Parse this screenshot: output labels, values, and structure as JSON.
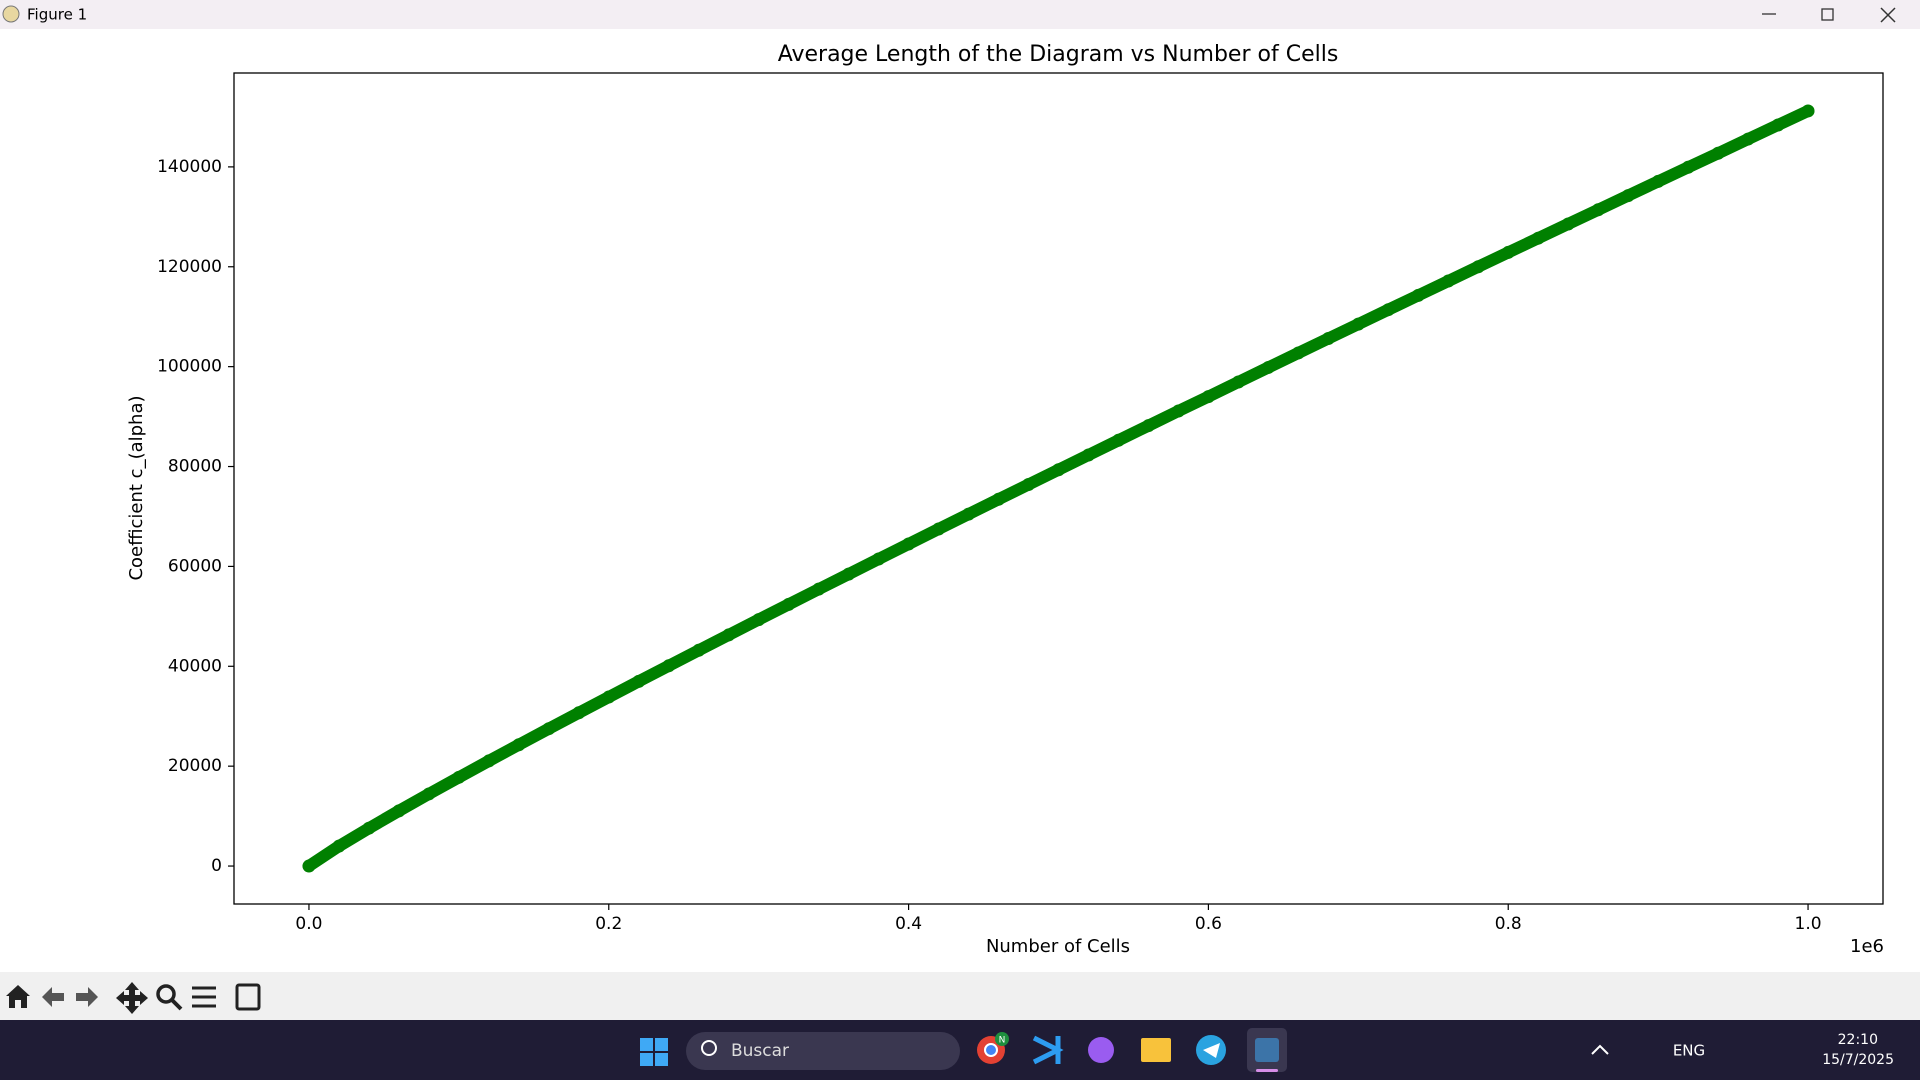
{
  "window": {
    "title": "Figure 1"
  },
  "chart_data": {
    "type": "scatter",
    "title": "Average Length of the Diagram vs Number of Cells",
    "x_label": "Number of Cells",
    "y_label": "Coefficient c_(alpha)",
    "x_offset_text": "1e6",
    "x": [
      0,
      0.02,
      0.04,
      0.06,
      0.08,
      0.1,
      0.12,
      0.14,
      0.16,
      0.18,
      0.2,
      0.22,
      0.24,
      0.26,
      0.28,
      0.3,
      0.32,
      0.34,
      0.36,
      0.38,
      0.4,
      0.42,
      0.44,
      0.46,
      0.48,
      0.5,
      0.52,
      0.54,
      0.56,
      0.58,
      0.6,
      0.62,
      0.64,
      0.66,
      0.68,
      0.7,
      0.72,
      0.74,
      0.76,
      0.78,
      0.8,
      0.82,
      0.84,
      0.86,
      0.88,
      0.9,
      0.92,
      0.94,
      0.96,
      0.98,
      1
    ],
    "values": [
      0,
      3980,
      7576,
      11046,
      14435,
      17764,
      21047,
      24290,
      27504,
      30686,
      33840,
      36984,
      40100,
      43200,
      46280,
      49350,
      52400,
      55440,
      58460,
      61480,
      64490,
      67480,
      70460,
      73440,
      76400,
      79350,
      82310,
      85250,
      88180,
      91110,
      94000,
      96930,
      99840,
      102740,
      105630,
      108520,
      111400,
      114270,
      117140,
      120010,
      122870,
      125720,
      128570,
      131410,
      134250,
      137090,
      139920,
      142730,
      145570,
      148390,
      151200
    ],
    "color": "#008000",
    "xlim": [
      -0.05,
      1.05
    ],
    "xticks": [
      {
        "value": 0,
        "label": "0.0"
      },
      0.2,
      0.4,
      0.6,
      0.8,
      {
        "value": 1,
        "label": "1.0"
      }
    ],
    "ylim": [
      -7600,
      158800
    ],
    "yticks": [
      0,
      20000,
      40000,
      60000,
      80000,
      100000,
      120000,
      140000
    ],
    "grid": false
  },
  "taskbar": {
    "search": "Buscar",
    "chrome_badge": "N",
    "language": "ENG",
    "time": "22:10",
    "date": "15/7/2025"
  }
}
